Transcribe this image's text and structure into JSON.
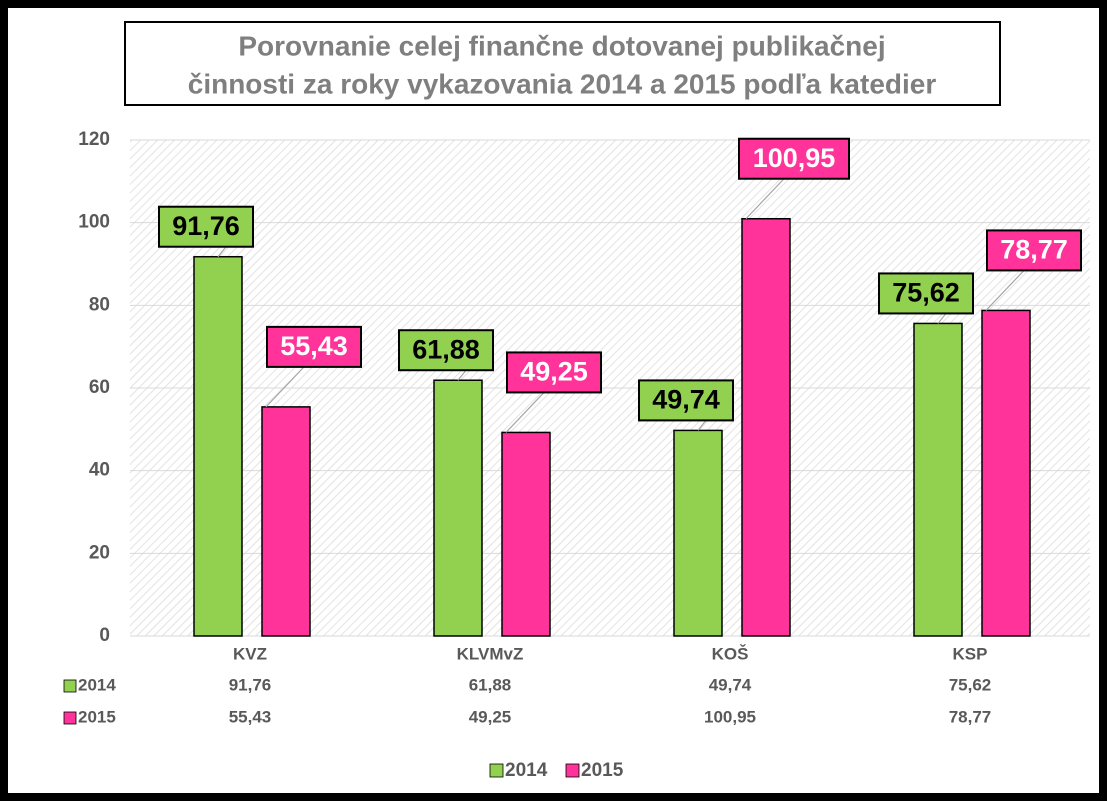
{
  "chart_data": {
    "type": "bar",
    "title": [
      "Porovnanie celej finančne dotovanej publikačnej",
      "činnosti za roky vykazovania 2014 a 2015 podľa katedier"
    ],
    "categories": [
      "KVZ",
      "KLVMvZ",
      "KOŠ",
      "KSP"
    ],
    "series": [
      {
        "name": "2014",
        "color": "#92d050",
        "label_text_color": "#000000",
        "values": [
          91.76,
          61.88,
          49.74,
          75.62
        ],
        "value_labels": [
          "91,76",
          "61,88",
          "49,74",
          "75,62"
        ]
      },
      {
        "name": "2015",
        "color": "#ff3399",
        "label_text_color": "#ffffff",
        "values": [
          55.43,
          49.25,
          100.95,
          78.77
        ],
        "value_labels": [
          "55,43",
          "49,25",
          "100,95",
          "78,77"
        ]
      }
    ],
    "ylim": [
      0,
      120
    ],
    "yticks": [
      0,
      20,
      40,
      60,
      80,
      100,
      120
    ],
    "grid": true,
    "legend": "bottom",
    "data_table": true
  }
}
